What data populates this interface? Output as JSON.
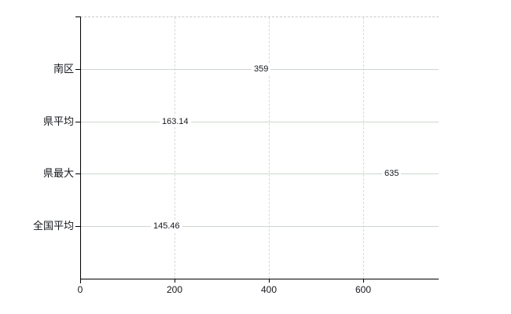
{
  "chart_data": {
    "type": "bar",
    "orientation": "horizontal",
    "title": "",
    "categories": [
      "南区",
      "県平均",
      "県最大",
      "全国平均"
    ],
    "values": [
      359,
      163.14,
      635,
      145.46
    ],
    "value_labels": [
      "359",
      "163.14",
      "635",
      "145.46"
    ],
    "bar_is_highlight": [
      true,
      false,
      false,
      false
    ],
    "x_ticks": [
      0,
      200,
      400,
      600
    ],
    "x_tick_labels": [
      "0",
      "200",
      "400",
      "600"
    ],
    "xlim": [
      0,
      760
    ],
    "grid": {
      "vertical_gridlines": "dashed",
      "horizontal_row_lines": "solid",
      "top_border": "dashed"
    },
    "legend_position": "none"
  },
  "colors": {
    "background": "#ffffff",
    "axis": "#000000",
    "grid_vertical": "#d9d9d9",
    "grid_horizontal": "#cdd7cd",
    "top_border": "#c9c9c9",
    "label_text": "#15181d",
    "bar_highlight_base": "#ef8f2b",
    "bar_highlight_dot": "#d26a16",
    "bar_default_base": "#a6d138",
    "bar_default_dot": "#84ab22"
  }
}
